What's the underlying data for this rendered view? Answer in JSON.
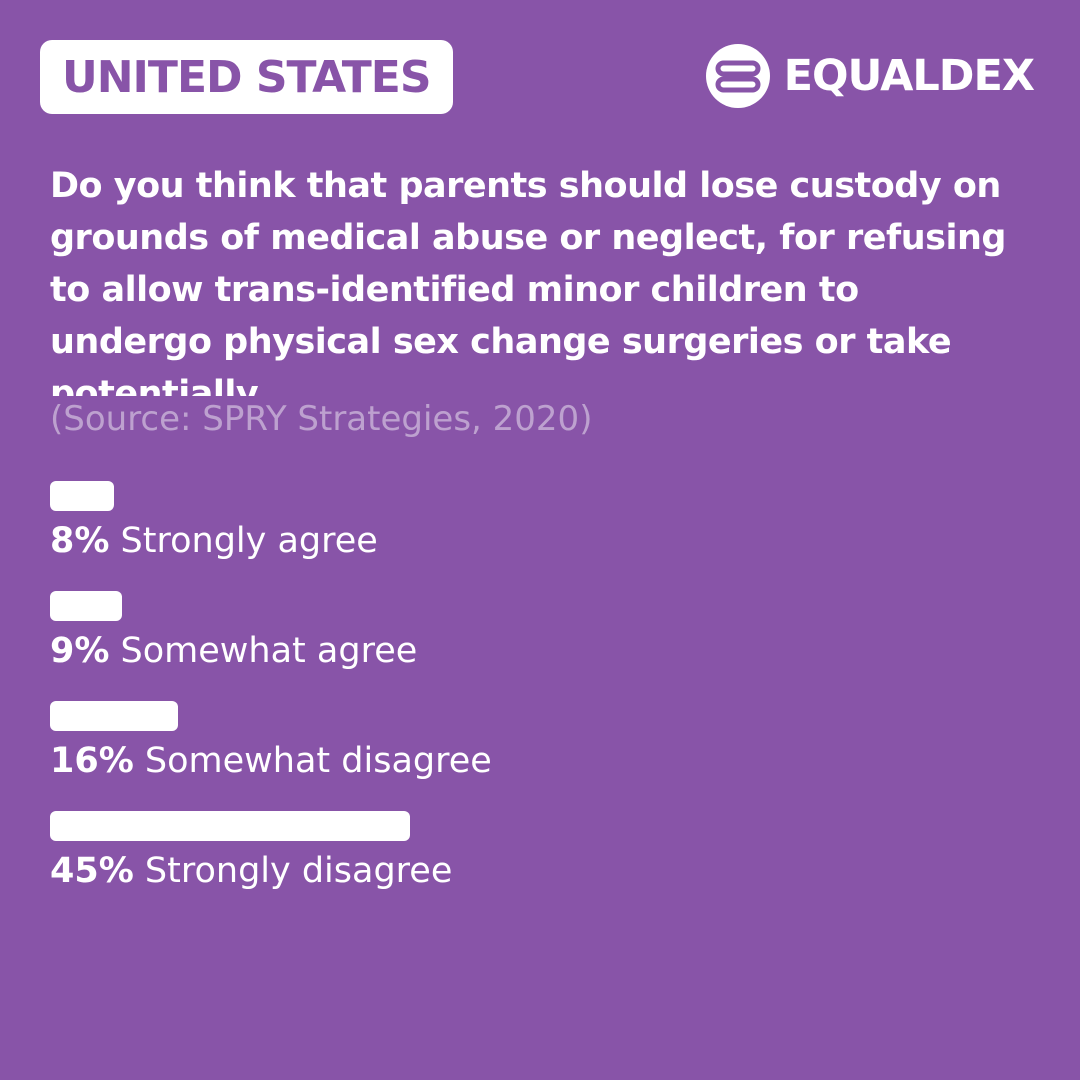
{
  "header": {
    "country": "UNITED STATES",
    "brand": "EQUALDEX",
    "logo_icon": "equaldex-logo-icon"
  },
  "question": "Do you think that parents should lose custody on grounds of medical abuse or neglect, for refusing to allow trans-identified minor children to undergo physical sex change surgeries or take potentially",
  "source": "(Source: SPRY Strategies, 2020)",
  "colors": {
    "background": "#8854a8",
    "bar": "#ffffff",
    "text": "#ffffff"
  },
  "chart_data": {
    "type": "bar",
    "orientation": "horizontal",
    "categories": [
      "Strongly agree",
      "Somewhat agree",
      "Somewhat disagree",
      "Strongly disagree"
    ],
    "values": [
      8,
      9,
      16,
      45
    ],
    "value_labels": [
      "8%",
      "9%",
      "16%",
      "45%"
    ],
    "unit": "%",
    "xlim": [
      0,
      100
    ]
  }
}
